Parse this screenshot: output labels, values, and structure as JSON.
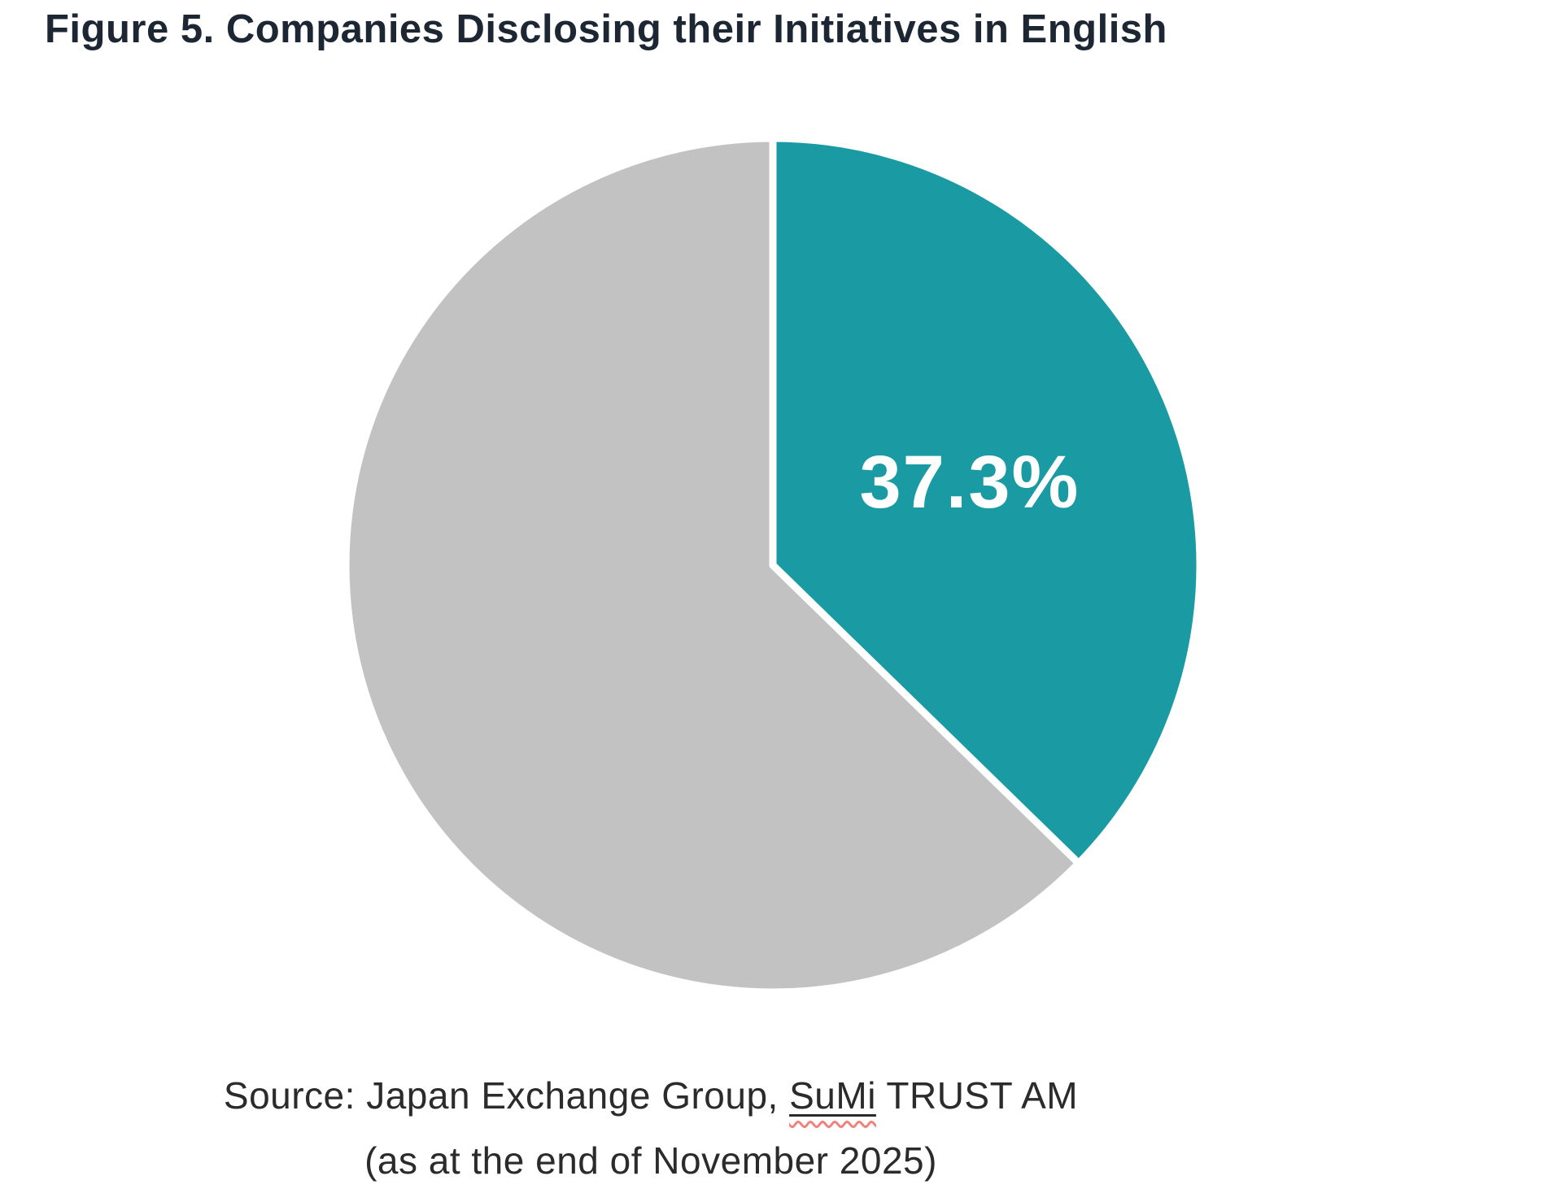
{
  "figure": {
    "title": "Figure 5. Companies Disclosing their Initiatives in English"
  },
  "source": {
    "prefix": "Source: Japan Exchange Group, ",
    "highlighted_term": "SuMi",
    "suffix": " TRUST AM",
    "date_line": "(as at the end of November 2025)"
  },
  "chart_data": {
    "type": "pie",
    "title": "Figure 5. Companies Disclosing their Initiatives in English",
    "slices": [
      {
        "value": 37.3,
        "label": "37.3%",
        "color": "#1A9AA2"
      },
      {
        "value": 62.7,
        "label": "",
        "color": "#C2C2C2"
      }
    ],
    "start_angle_deg": 0,
    "direction": "clockwise",
    "legend": "none",
    "slice_gap_color": "#FFFFFF",
    "data_label_color": "#FFFFFF"
  },
  "colors": {
    "background": "#FFFFFF",
    "title_text": "#1D2633",
    "source_text": "#2B2B2B",
    "spellcheck_squiggle": "#F2817C"
  }
}
